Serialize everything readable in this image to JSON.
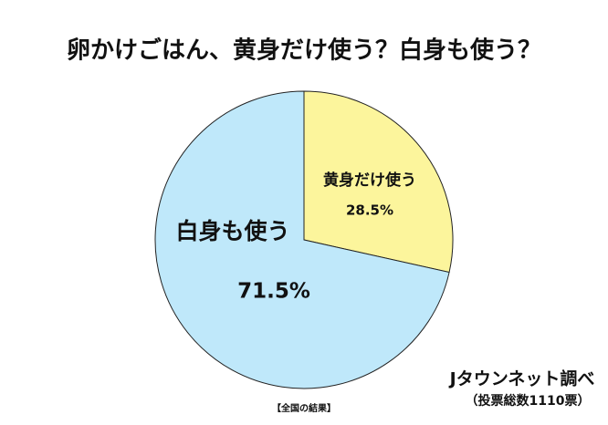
{
  "chart_data": {
    "type": "pie",
    "title": "卵かけごはん、黄身だけ使う？白身も使う？",
    "categories": [
      "黄身だけ使う",
      "白身も使う"
    ],
    "values": [
      28.5,
      71.5
    ],
    "value_labels": [
      "28.5%",
      "71.5%"
    ],
    "colors": [
      "#fcf59c",
      "#bfe8fa"
    ],
    "note": "【全国の結果】",
    "source": "Jタウンネット調べ",
    "source_note": "（投票総数1110票）"
  }
}
